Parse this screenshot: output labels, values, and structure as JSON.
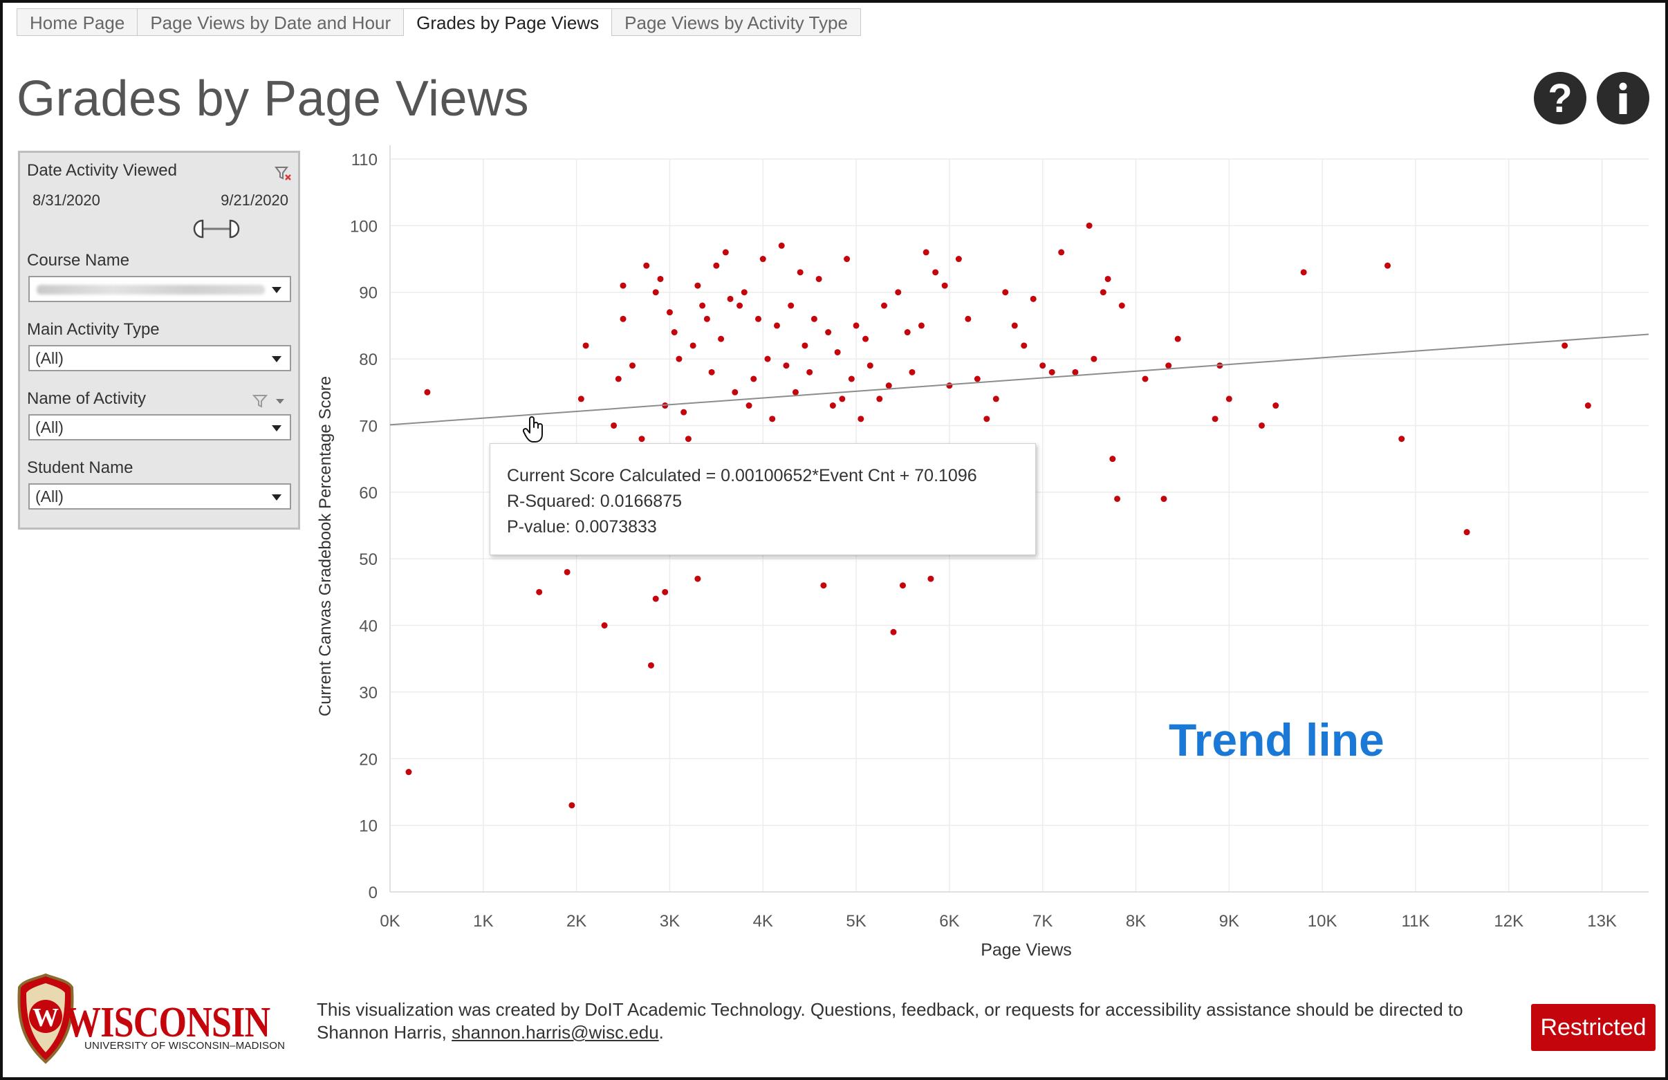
{
  "tabs": [
    {
      "label": "Home Page",
      "active": false
    },
    {
      "label": "Page Views by Date and Hour",
      "active": false
    },
    {
      "label": "Grades by Page Views",
      "active": true
    },
    {
      "label": "Page Views by Activity Type",
      "active": false
    }
  ],
  "header": {
    "title": "Grades by Page Views",
    "help_glyph": "?",
    "help_icon": "question-circle-icon",
    "info_icon": "info-circle-icon"
  },
  "filters": {
    "date_label": "Date Activity Viewed",
    "date_start": "8/31/2020",
    "date_end": "9/21/2020",
    "course_label": "Course Name",
    "main_activity_label": "Main Activity Type",
    "main_activity_value": "(All)",
    "activity_name_label": "Name of Activity",
    "activity_name_value": "(All)",
    "student_label": "Student Name",
    "student_value": "(All)"
  },
  "tooltip": {
    "line1": "Current Score Calculated = 0.00100652*Event Cnt + 70.1096",
    "line2": "R-Squared: 0.0166875",
    "line3": "P-value: 0.0073833"
  },
  "annotation": "Trend line",
  "colors": {
    "point": "#c5050c",
    "trend": "#8c8c8c",
    "annotation": "#1a79d6",
    "restricted": "#c5050c"
  },
  "footer": {
    "text": "This visualization was created by DoIT Academic Technology. Questions, feedback, or requests for accessibility assistance should be directed to Shannon Harris,",
    "email": "shannon.harris@wisc.edu",
    "restricted": "Restricted"
  },
  "logo": {
    "word": "WISCONSIN",
    "sub": "UNIVERSITY OF WISCONSIN–MADISON",
    "crest_letter": "W"
  },
  "chart_data": {
    "type": "scatter",
    "xlabel": "Page Views",
    "ylabel": "Current Canvas Gradebook Percentage Score",
    "xlim": [
      0,
      13500
    ],
    "ylim": [
      0,
      110
    ],
    "xticks": [
      0,
      1000,
      2000,
      3000,
      4000,
      5000,
      6000,
      7000,
      8000,
      9000,
      10000,
      11000,
      12000,
      13000
    ],
    "xtick_labels": [
      "0K",
      "1K",
      "2K",
      "3K",
      "4K",
      "5K",
      "6K",
      "7K",
      "8K",
      "9K",
      "10K",
      "11K",
      "12K",
      "13K"
    ],
    "yticks": [
      0,
      10,
      20,
      30,
      40,
      50,
      60,
      70,
      80,
      90,
      100,
      110
    ],
    "grid": true,
    "trend": {
      "slope": 0.00100652,
      "intercept": 70.1096
    },
    "points": [
      [
        200,
        18
      ],
      [
        400,
        75
      ],
      [
        1600,
        45
      ],
      [
        1900,
        48
      ],
      [
        1950,
        13
      ],
      [
        2050,
        74
      ],
      [
        2100,
        82
      ],
      [
        2300,
        40
      ],
      [
        2400,
        70
      ],
      [
        2450,
        77
      ],
      [
        2500,
        86
      ],
      [
        2500,
        91
      ],
      [
        2600,
        79
      ],
      [
        2700,
        68
      ],
      [
        2750,
        94
      ],
      [
        2800,
        34
      ],
      [
        2850,
        44
      ],
      [
        2850,
        90
      ],
      [
        2900,
        92
      ],
      [
        2950,
        45
      ],
      [
        2950,
        73
      ],
      [
        3000,
        87
      ],
      [
        3050,
        84
      ],
      [
        3100,
        80
      ],
      [
        3150,
        72
      ],
      [
        3200,
        68
      ],
      [
        3250,
        82
      ],
      [
        3300,
        47
      ],
      [
        3300,
        91
      ],
      [
        3350,
        88
      ],
      [
        3400,
        86
      ],
      [
        3450,
        78
      ],
      [
        3500,
        94
      ],
      [
        3550,
        83
      ],
      [
        3600,
        96
      ],
      [
        3650,
        89
      ],
      [
        3700,
        75
      ],
      [
        3750,
        88
      ],
      [
        3800,
        90
      ],
      [
        3850,
        73
      ],
      [
        3900,
        77
      ],
      [
        3950,
        86
      ],
      [
        4000,
        95
      ],
      [
        4050,
        80
      ],
      [
        4100,
        71
      ],
      [
        4150,
        85
      ],
      [
        4200,
        97
      ],
      [
        4250,
        79
      ],
      [
        4300,
        88
      ],
      [
        4350,
        75
      ],
      [
        4400,
        93
      ],
      [
        4450,
        82
      ],
      [
        4500,
        78
      ],
      [
        4550,
        86
      ],
      [
        4600,
        92
      ],
      [
        4650,
        46
      ],
      [
        4700,
        84
      ],
      [
        4750,
        73
      ],
      [
        4800,
        81
      ],
      [
        4850,
        74
      ],
      [
        4900,
        95
      ],
      [
        4950,
        77
      ],
      [
        5000,
        85
      ],
      [
        5050,
        71
      ],
      [
        5100,
        83
      ],
      [
        5150,
        79
      ],
      [
        5250,
        74
      ],
      [
        5300,
        88
      ],
      [
        5350,
        76
      ],
      [
        5400,
        39
      ],
      [
        5450,
        90
      ],
      [
        5500,
        46
      ],
      [
        5550,
        84
      ],
      [
        5600,
        78
      ],
      [
        5700,
        85
      ],
      [
        5750,
        96
      ],
      [
        5800,
        47
      ],
      [
        5850,
        93
      ],
      [
        5950,
        91
      ],
      [
        6000,
        76
      ],
      [
        6100,
        95
      ],
      [
        6200,
        86
      ],
      [
        6300,
        77
      ],
      [
        6400,
        71
      ],
      [
        6500,
        74
      ],
      [
        6600,
        90
      ],
      [
        6700,
        85
      ],
      [
        6800,
        82
      ],
      [
        6900,
        89
      ],
      [
        7000,
        79
      ],
      [
        7100,
        78
      ],
      [
        7200,
        96
      ],
      [
        7350,
        78
      ],
      [
        7500,
        100
      ],
      [
        7550,
        80
      ],
      [
        7650,
        90
      ],
      [
        7700,
        92
      ],
      [
        7750,
        65
      ],
      [
        7800,
        59
      ],
      [
        7850,
        88
      ],
      [
        8100,
        77
      ],
      [
        8300,
        59
      ],
      [
        8350,
        79
      ],
      [
        8450,
        83
      ],
      [
        8850,
        71
      ],
      [
        8900,
        79
      ],
      [
        9000,
        74
      ],
      [
        9350,
        70
      ],
      [
        9500,
        73
      ],
      [
        9800,
        93
      ],
      [
        10700,
        94
      ],
      [
        10850,
        68
      ],
      [
        11550,
        54
      ],
      [
        12600,
        82
      ],
      [
        12850,
        73
      ]
    ]
  }
}
